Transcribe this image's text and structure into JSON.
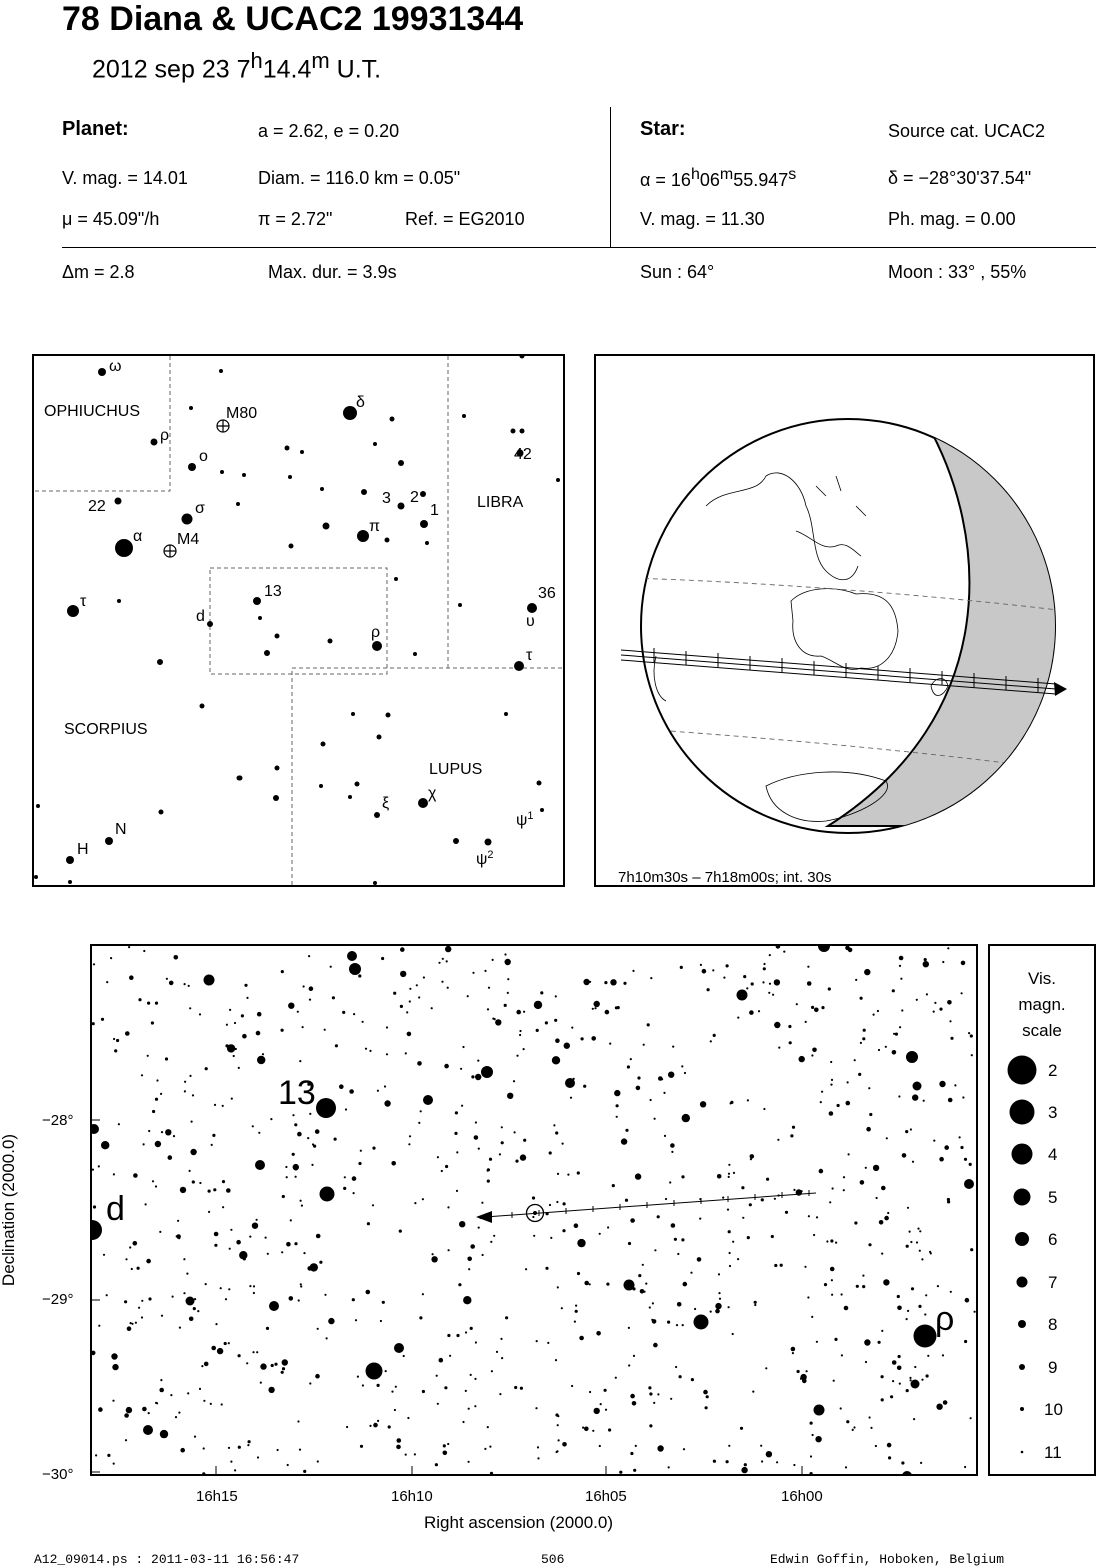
{
  "header": {
    "title": "78 Diana  &  UCAC2 19931344",
    "date_prefix": "2012 sep 23   7",
    "hour_sup": "h",
    "minutes": "14.4",
    "min_sup": "m",
    "ut": " U.T."
  },
  "planet": {
    "label": "Planet:",
    "orbit": "a = 2.62, e = 0.20",
    "vmag": "V. mag. = 14.01",
    "diam": "Diam. = 116.0 km = 0.05\"",
    "mu": "μ =  45.09\"/h",
    "pi": "π =  2.72\"",
    "ref": "Ref. = EG2010"
  },
  "star": {
    "label": "Star:",
    "source": "Source cat.  UCAC2",
    "ra_prefix": "α = 16",
    "ra_h": "h",
    "ra_mid": "06",
    "ra_m": "m",
    "ra_sec": "55.947",
    "ra_s": "s",
    "dec": "δ = −28°30'37.54\"",
    "vmag": "V. mag. = 11.30",
    "phmag": "Ph. mag. =  0.00"
  },
  "event": {
    "dm": "Δm = 2.8",
    "maxdur": "Max. dur. = 3.9s",
    "sun": "Sun :  64°",
    "moon": "Moon :  33° , 55%"
  },
  "constellation_map": {
    "regions": [
      "OPHIUCHUS",
      "LIBRA",
      "SCORPIUS",
      "LUPUS"
    ],
    "labels": {
      "omega": "ω",
      "rho_oph": "ρ",
      "m80": "M80",
      "omicron": "o",
      "delta": "δ",
      "n42": "42",
      "n3": "3",
      "n2": "2",
      "n1": "1",
      "n22": "22",
      "sigma": "σ",
      "alpha": "α",
      "m4": "M4",
      "pi": "π",
      "tau_sco": "τ",
      "n13": "13",
      "d": "d",
      "n36": "36",
      "upsilon": "υ",
      "rho_sco": "ρ",
      "tau_lib": "τ",
      "xi": "ξ",
      "chi": "χ",
      "psi1": "ψ",
      "psi1_sup": "1",
      "psi2": "ψ",
      "psi2_sup": "2",
      "H": "H",
      "N": "N"
    }
  },
  "globe": {
    "caption": "7h10m30s –  7h18m00s; int. 30s"
  },
  "star_chart": {
    "ylabel": "Declination (2000.0)",
    "xlabel": "Right ascension (2000.0)",
    "yticks": [
      "−28°",
      "−29°",
      "−30°"
    ],
    "xticks": [
      "16h15",
      "16h10",
      "16h05",
      "16h00"
    ],
    "labels": {
      "n13": "13",
      "d": "d",
      "rho": "ρ"
    }
  },
  "scale": {
    "title_1": "Vis.",
    "title_2": "magn.",
    "title_3": "scale",
    "mags": [
      "2",
      "3",
      "4",
      "5",
      "6",
      "7",
      "8",
      "9",
      "10",
      "11"
    ]
  },
  "footer": {
    "file": "A12_09014.ps : 2011-03-11 16:56:47",
    "page": "506",
    "author": "Edwin Goffin, Hoboken, Belgium"
  }
}
